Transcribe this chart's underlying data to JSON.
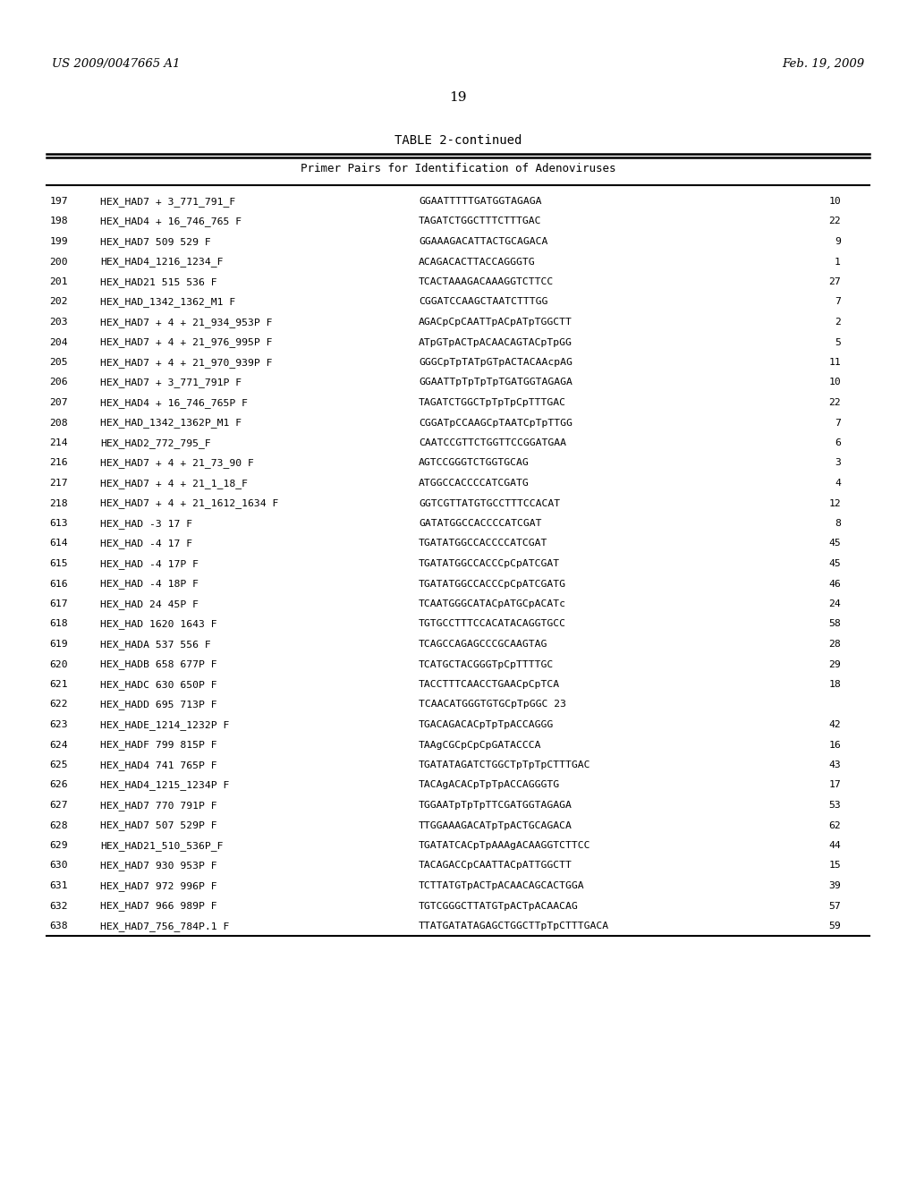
{
  "header_left": "US 2009/0047665 A1",
  "header_right": "Feb. 19, 2009",
  "page_number": "19",
  "table_title": "TABLE 2-continued",
  "table_subtitle": "Primer Pairs for Identification of Adenoviruses",
  "rows": [
    [
      "197",
      "HEX_HAD7 + 3_771_791_F",
      "GGAATTTTTGATGGTAGAGA",
      "10"
    ],
    [
      "198",
      "HEX_HAD4 + 16_746_765 F",
      "TAGATCTGGCTTTCTTTGAC",
      "22"
    ],
    [
      "199",
      "HEX_HAD7 509 529 F",
      "GGAAAGACATTACTGCAGACA",
      "9"
    ],
    [
      "200",
      "HEX_HAD4_1216_1234_F",
      "ACAGACACTTACCAGGGTG",
      "1"
    ],
    [
      "201",
      "HEX_HAD21 515 536 F",
      "TCACTAAAGACAAAGGTCTTCC",
      "27"
    ],
    [
      "202",
      "HEX_HAD_1342_1362_M1 F",
      "CGGATCCAAGCTAATCTTTGG",
      "7"
    ],
    [
      "203",
      "HEX_HAD7 + 4 + 21_934_953P F",
      "AGACpCpCAATTpACpATpTGGCTT",
      "2"
    ],
    [
      "204",
      "HEX_HAD7 + 4 + 21_976_995P F",
      "ATpGTpACTpACAACAGTACpTpGG",
      "5"
    ],
    [
      "205",
      "HEX_HAD7 + 4 + 21_970_939P F",
      "GGGCpTpTATpGTpACTACAAcpAG",
      "11"
    ],
    [
      "206",
      "HEX_HAD7 + 3_771_791P F",
      "GGAATTpTpTpTpTGATGGTAGAGA",
      "10"
    ],
    [
      "207",
      "HEX_HAD4 + 16_746_765P F",
      "TAGATCTGGCTpTpTpCpTTTGAC",
      "22"
    ],
    [
      "208",
      "HEX_HAD_1342_1362P_M1 F",
      "CGGATpCCAAGCpTAATCpTpTTGG",
      "7"
    ],
    [
      "214",
      "HEX_HAD2_772_795_F",
      "CAATCCGTTCTGGTTCCGGATGAA",
      "6"
    ],
    [
      "216",
      "HEX_HAD7 + 4 + 21_73_90 F",
      "AGTCCGGGTCTGGTGCAG",
      "3"
    ],
    [
      "217",
      "HEX_HAD7 + 4 + 21_1_18_F",
      "ATGGCCACCCCATCGATG",
      "4"
    ],
    [
      "218",
      "HEX_HAD7 + 4 + 21_1612_1634 F",
      "GGTCGTTATGTGCCTTTCCACAT",
      "12"
    ],
    [
      "613",
      "HEX_HAD -3 17 F",
      "GATATGGCCACCCCATCGAT",
      "8"
    ],
    [
      "614",
      "HEX_HAD -4 17 F",
      "TGATATGGCCACCCCATCGAT",
      "45"
    ],
    [
      "615",
      "HEX_HAD -4 17P F",
      "TGATATGGCCACCCpCpATCGAT",
      "45"
    ],
    [
      "616",
      "HEX_HAD -4 18P F",
      "TGATATGGCCACCCpCpATCGATG",
      "46"
    ],
    [
      "617",
      "HEX_HAD 24 45P F",
      "TCAATGGGCATACpATGCpACATc",
      "24"
    ],
    [
      "618",
      "HEX_HAD 1620 1643 F",
      "TGTGCCTTTCCACATACAGGTGCC",
      "58"
    ],
    [
      "619",
      "HEX_HADA 537 556 F",
      "TCAGCCAGAGCCCGCAAGTAG",
      "28"
    ],
    [
      "620",
      "HEX_HADB 658 677P F",
      "TCATGCTACGGGTpCpTTTTGC",
      "29"
    ],
    [
      "621",
      "HEX_HADC 630 650P F",
      "TACCTTTCAACCTGAACpCpTCA",
      "18"
    ],
    [
      "622",
      "HEX_HADD 695 713P F",
      "TCAACATGGGTGTGCpTpGGC 23",
      ""
    ],
    [
      "623",
      "HEX_HADE_1214_1232P F",
      "TGACAGACACpTpTpACCAGGG",
      "42"
    ],
    [
      "624",
      "HEX_HADF 799 815P F",
      "TAAgCGCpCpCpGATACCCA",
      "16"
    ],
    [
      "625",
      "HEX_HAD4 741 765P F",
      "TGATATAGATCTGGCTpTpTpCTTTGAC",
      "43"
    ],
    [
      "626",
      "HEX_HAD4_1215_1234P F",
      "TACAgACACpTpTpACCAGGGTG",
      "17"
    ],
    [
      "627",
      "HEX_HAD7 770 791P F",
      "TGGAATpTpTpTTCGATGGTAGAGA",
      "53"
    ],
    [
      "628",
      "HEX_HAD7 507 529P F",
      "TTGGAAAGACATpTpACTGCAGACA",
      "62"
    ],
    [
      "629",
      "HEX_HAD21_510_536P_F",
      "TGATATCACpTpAAAgACAAGGTCTTCC",
      "44"
    ],
    [
      "630",
      "HEX_HAD7 930 953P F",
      "TACAGACCpCAATTACpATTGGCTT",
      "15"
    ],
    [
      "631",
      "HEX_HAD7 972 996P F",
      "TCTTATGTpACTpACAACAGCACTGGA",
      "39"
    ],
    [
      "632",
      "HEX_HAD7 966 989P F",
      "TGTCGGGCTTATGTpACTpACAACAG",
      "57"
    ],
    [
      "638",
      "HEX_HAD7_756_784P.1 F",
      "TTATGATATAGAGCTGGCTTpTpCTTTGACA",
      "59"
    ]
  ],
  "bg_color": "#ffffff",
  "text_color": "#000000",
  "line_color": "#000000"
}
